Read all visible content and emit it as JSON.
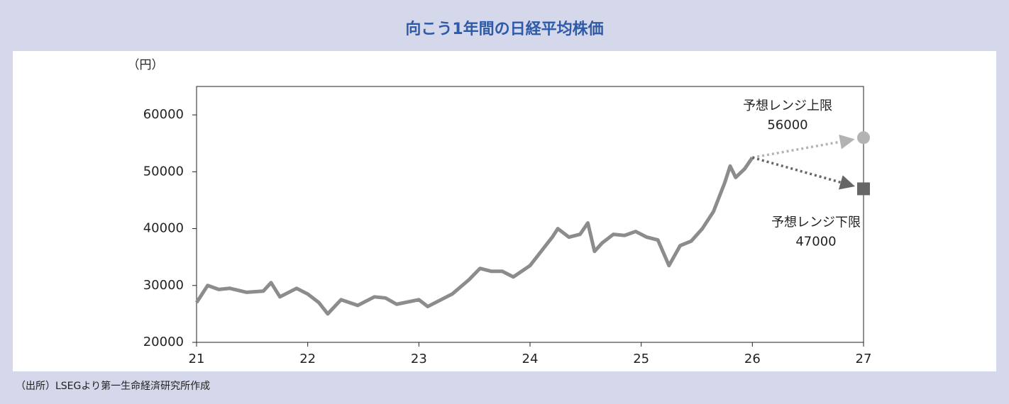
{
  "chart_data": {
    "type": "line",
    "title": "向こう1年間の日経平均株価",
    "y_label": "（円）",
    "source": "（出所）LSEGより第一生命経済研究所作成",
    "color": "#8c8c8c",
    "x": [
      21.0,
      21.1,
      21.2,
      21.3,
      21.45,
      21.6,
      21.67,
      21.75,
      21.9,
      22.0,
      22.1,
      22.18,
      22.3,
      22.45,
      22.6,
      22.7,
      22.8,
      23.0,
      23.08,
      23.2,
      23.3,
      23.45,
      23.55,
      23.65,
      23.75,
      23.85,
      24.0,
      24.1,
      24.2,
      24.25,
      24.35,
      24.45,
      24.52,
      24.58,
      24.65,
      24.75,
      24.85,
      24.95,
      25.05,
      25.15,
      25.25,
      25.35,
      25.45,
      25.55,
      25.65,
      25.75,
      25.8,
      25.85,
      25.93,
      26.0
    ],
    "values": [
      27000,
      30000,
      29300,
      29500,
      28800,
      29000,
      30500,
      28000,
      29500,
      28500,
      27000,
      25000,
      27500,
      26500,
      28000,
      27800,
      26700,
      27500,
      26300,
      27500,
      28500,
      31000,
      33000,
      32500,
      32500,
      31500,
      33500,
      36000,
      38500,
      40000,
      38500,
      39000,
      41000,
      36000,
      37500,
      39000,
      38800,
      39500,
      38500,
      38000,
      33500,
      37000,
      37800,
      40000,
      43000,
      48000,
      51000,
      49000,
      50500,
      52500
    ],
    "annotations": [
      {
        "label": "予想レンジ上限",
        "value": 56000,
        "x": 27,
        "color": "#b3b3b3",
        "marker": "circle"
      },
      {
        "label": "予想レンジ下限",
        "value": 47000,
        "x": 27,
        "color": "#666666",
        "marker": "square"
      }
    ],
    "xlim": [
      21,
      27
    ],
    "xticks": [
      21,
      22,
      23,
      24,
      25,
      26,
      27
    ],
    "ylim": [
      20000,
      65000
    ],
    "yticks": [
      20000,
      30000,
      40000,
      50000,
      60000
    ]
  }
}
